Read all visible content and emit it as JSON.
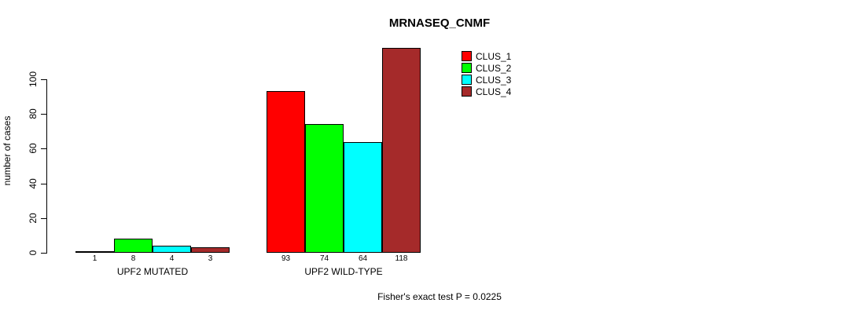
{
  "title": "MRNASEQ_CNMF",
  "caption": "Fisher's exact test P = 0.0225",
  "chart_data": {
    "type": "bar",
    "title": "MRNASEQ_CNMF",
    "xlabel": "",
    "ylabel": "number of cases",
    "categories": [
      "UPF2 MUTATED",
      "UPF2 WILD-TYPE"
    ],
    "series": [
      {
        "name": "CLUS_1",
        "color": "#FF0000",
        "values": [
          1,
          93
        ]
      },
      {
        "name": "CLUS_2",
        "color": "#00FF00",
        "values": [
          8,
          74
        ]
      },
      {
        "name": "CLUS_3",
        "color": "#00FFFF",
        "values": [
          4,
          64
        ]
      },
      {
        "name": "CLUS_4",
        "color": "#A52A2A",
        "values": [
          3,
          118
        ]
      }
    ],
    "bar_value_labels": [
      [
        "1",
        "8",
        "4",
        "3"
      ],
      [
        "93",
        "74",
        "64",
        "118"
      ]
    ],
    "yticks": [
      0,
      20,
      40,
      60,
      80,
      100
    ],
    "ylim": [
      0,
      118
    ],
    "grid": false,
    "legend_position": "top-right",
    "annotation": "Fisher's exact test P = 0.0225"
  }
}
